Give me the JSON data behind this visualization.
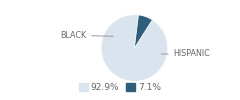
{
  "slices": [
    92.9,
    7.1
  ],
  "labels": [
    "BLACK",
    "HISPANIC"
  ],
  "colors": [
    "#d9e4ef",
    "#2e5f7a"
  ],
  "legend_labels": [
    "92.9%",
    "7.1%"
  ],
  "startangle": 83,
  "bg_color": "#ffffff",
  "label_fontsize": 5.8,
  "legend_fontsize": 6.5
}
